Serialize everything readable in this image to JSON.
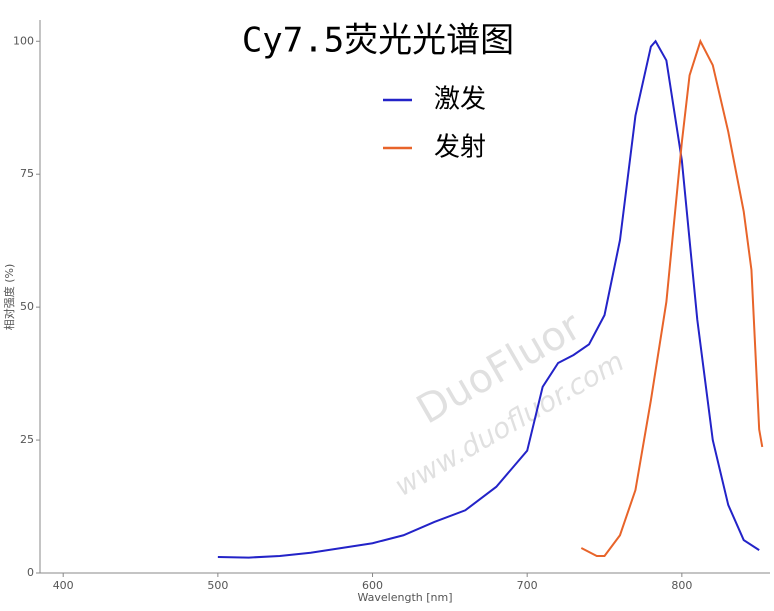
{
  "chart_data": {
    "type": "line",
    "title": "Cy7.5荧光光谱图",
    "x_label": "Wavelength [nm]",
    "y_label": "相对强度 (%)",
    "xlim": [
      385,
      857
    ],
    "xticks": [
      400,
      500,
      600,
      700,
      800
    ],
    "ylim": [
      0,
      104
    ],
    "yticks": [
      0,
      25,
      50,
      75,
      100
    ],
    "legend": "upper center",
    "watermark": [
      "DuoFluor",
      "www.duofluor.com"
    ],
    "series": [
      {
        "name": "激发",
        "color": "#2323c8",
        "x": [
          500,
          520,
          540,
          560,
          580,
          600,
          620,
          640,
          660,
          680,
          700,
          710,
          720,
          730,
          740,
          750,
          760,
          770,
          780,
          783,
          790,
          800,
          810,
          820,
          830,
          840,
          850
        ],
        "values": [
          3.0,
          2.9,
          3.2,
          3.8,
          4.7,
          5.6,
          7.1,
          9.6,
          11.8,
          16.2,
          23,
          35,
          39.5,
          41,
          43,
          48.5,
          62.6,
          86,
          99,
          100,
          96.4,
          77.6,
          47.6,
          25,
          12.8,
          6.2,
          4.3
        ]
      },
      {
        "name": "发射",
        "color": "#e8642a",
        "x": [
          735,
          745,
          750,
          760,
          770,
          780,
          790,
          795,
          800,
          805,
          812,
          820,
          830,
          840,
          845,
          850,
          852
        ],
        "values": [
          4.7,
          3.2,
          3.2,
          7.1,
          15.6,
          32.5,
          51,
          66,
          81,
          93.6,
          100,
          95.5,
          83,
          68,
          57,
          27,
          23.7
        ]
      }
    ]
  }
}
